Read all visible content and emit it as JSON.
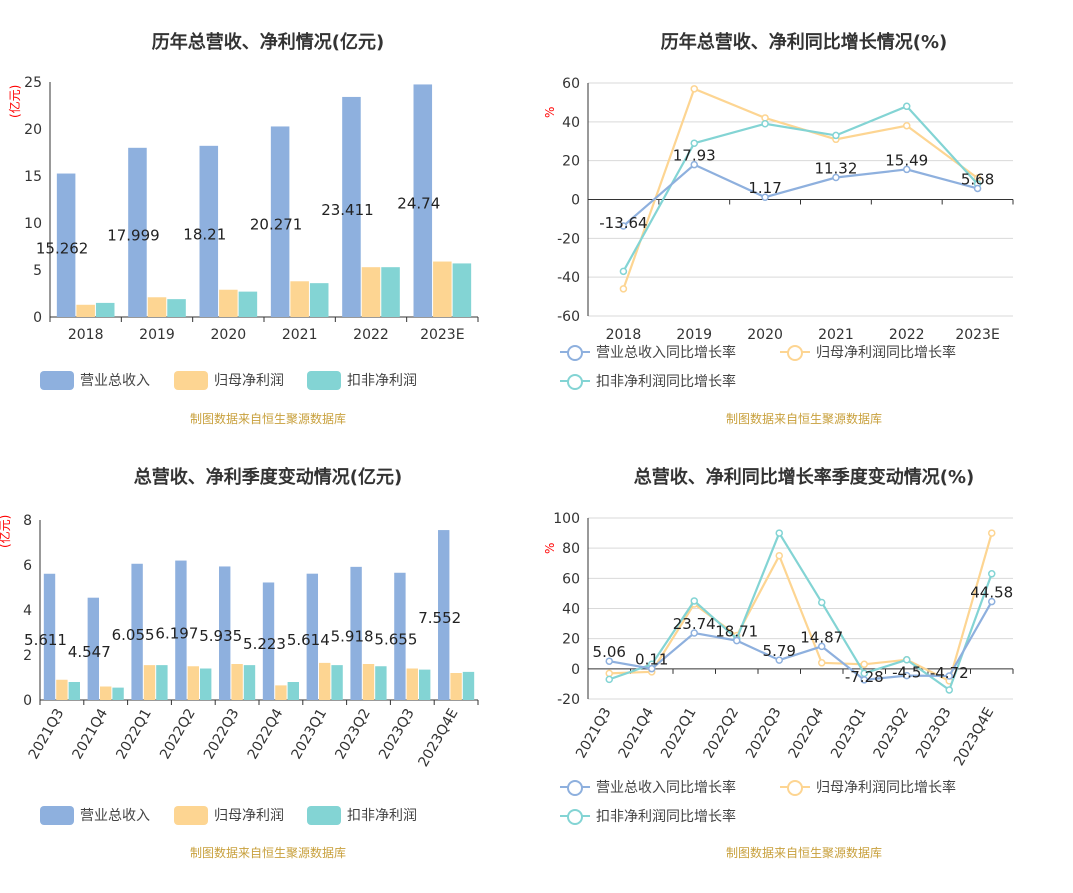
{
  "colors": {
    "revenue": "#8eb0de",
    "net_profit": "#fdd592",
    "deducted_profit": "#83d4d4",
    "axis": "#333333",
    "grid": "#d9d9d9",
    "source": "#c8a03c",
    "unit": "#ff0000"
  },
  "source_note": "制图数据来自恒生聚源数据库",
  "bar_legend": [
    "营业总收入",
    "归母净利润",
    "扣非净利润"
  ],
  "line_legend": [
    "营业总收入同比增长率",
    "归母净利润同比增长率",
    "扣非净利润同比增长率"
  ],
  "chart_data": [
    {
      "id": "annual",
      "type": "bar",
      "title": "历年总营收、净利情况(亿元)",
      "ylabel": "(亿元)",
      "ylim": [
        0,
        25
      ],
      "yticks": [
        0,
        5,
        10,
        15,
        20,
        25
      ],
      "categories": [
        "2018",
        "2019",
        "2020",
        "2021",
        "2022",
        "2023E"
      ],
      "series": [
        {
          "name": "营业总收入",
          "values": [
            15.262,
            17.999,
            18.21,
            20.271,
            23.411,
            24.74
          ],
          "labels": [
            "15.262",
            "17.999",
            "18.21",
            "20.271",
            "23.411",
            "24.74"
          ]
        },
        {
          "name": "归母净利润",
          "values": [
            1.3,
            2.1,
            2.9,
            3.8,
            5.3,
            5.9
          ]
        },
        {
          "name": "扣非净利润",
          "values": [
            1.5,
            1.9,
            2.7,
            3.6,
            5.3,
            5.7
          ]
        }
      ],
      "legend": "bottom"
    },
    {
      "id": "annual_growth",
      "type": "line",
      "title": "历年总营收、净利同比增长情况(%)",
      "ylabel": "%",
      "ylim": [
        -60,
        60
      ],
      "yticks": [
        -60,
        -40,
        -20,
        0,
        20,
        40,
        60
      ],
      "categories": [
        "2018",
        "2019",
        "2020",
        "2021",
        "2022",
        "2023E"
      ],
      "series": [
        {
          "name": "营业总收入同比增长率",
          "values": [
            -13.64,
            17.93,
            1.17,
            11.32,
            15.49,
            5.68
          ],
          "labels": [
            "-13.64",
            "17.93",
            "1.17",
            "11.32",
            "15.49",
            "5.68"
          ]
        },
        {
          "name": "归母净利润同比增长率",
          "values": [
            -46,
            57,
            42,
            31,
            38,
            11
          ]
        },
        {
          "name": "扣非净利润同比增长率",
          "values": [
            -37,
            29,
            39,
            33,
            48,
            8
          ]
        }
      ],
      "legend": "bottom"
    },
    {
      "id": "quarterly",
      "type": "bar",
      "title": "总营收、净利季度变动情况(亿元)",
      "ylabel": "(亿元)",
      "ylim": [
        0,
        8
      ],
      "yticks": [
        0,
        2,
        4,
        6,
        8
      ],
      "categories": [
        "2021Q3",
        "2021Q4",
        "2022Q1",
        "2022Q2",
        "2022Q3",
        "2022Q4",
        "2023Q1",
        "2023Q2",
        "2023Q3",
        "2023Q4E"
      ],
      "series": [
        {
          "name": "营业总收入",
          "values": [
            5.611,
            4.547,
            6.055,
            6.197,
            5.935,
            5.223,
            5.614,
            5.918,
            5.655,
            7.552
          ],
          "labels": [
            "5.611",
            "4.547",
            "6.055",
            "6.197",
            "5.935",
            "5.223",
            "5.614",
            "5.918",
            "5.655",
            "7.552"
          ]
        },
        {
          "name": "归母净利润",
          "values": [
            0.9,
            0.6,
            1.55,
            1.5,
            1.6,
            0.65,
            1.65,
            1.6,
            1.4,
            1.2
          ]
        },
        {
          "name": "扣非净利润",
          "values": [
            0.8,
            0.55,
            1.55,
            1.4,
            1.55,
            0.8,
            1.55,
            1.5,
            1.35,
            1.25
          ]
        }
      ],
      "legend": "bottom"
    },
    {
      "id": "quarterly_growth",
      "type": "line",
      "title": "总营收、净利同比增长率季度变动情况(%)",
      "ylabel": "%",
      "ylim": [
        -20,
        100
      ],
      "yticks": [
        -20,
        0,
        20,
        40,
        60,
        80,
        100
      ],
      "categories": [
        "2021Q3",
        "2021Q4",
        "2022Q1",
        "2022Q2",
        "2022Q3",
        "2022Q4",
        "2023Q1",
        "2023Q2",
        "2023Q3",
        "2023Q4E"
      ],
      "series": [
        {
          "name": "营业总收入同比增长率",
          "values": [
            5.06,
            0.11,
            23.74,
            18.71,
            5.79,
            14.87,
            -7.28,
            -4.5,
            -4.72,
            44.58
          ],
          "labels": [
            "5.06",
            "0.11",
            "23.74",
            "18.71",
            "5.79",
            "14.87",
            "-7.28",
            "-4.5",
            "-4.72",
            "44.58"
          ]
        },
        {
          "name": "归母净利润同比增长率",
          "values": [
            -3,
            -2,
            43,
            22,
            75,
            4,
            3,
            6,
            -8,
            90
          ]
        },
        {
          "name": "扣非净利润同比增长率",
          "values": [
            -7,
            3,
            45,
            20,
            90,
            44,
            -3,
            6,
            -14,
            63
          ]
        }
      ],
      "legend": "bottom"
    }
  ]
}
